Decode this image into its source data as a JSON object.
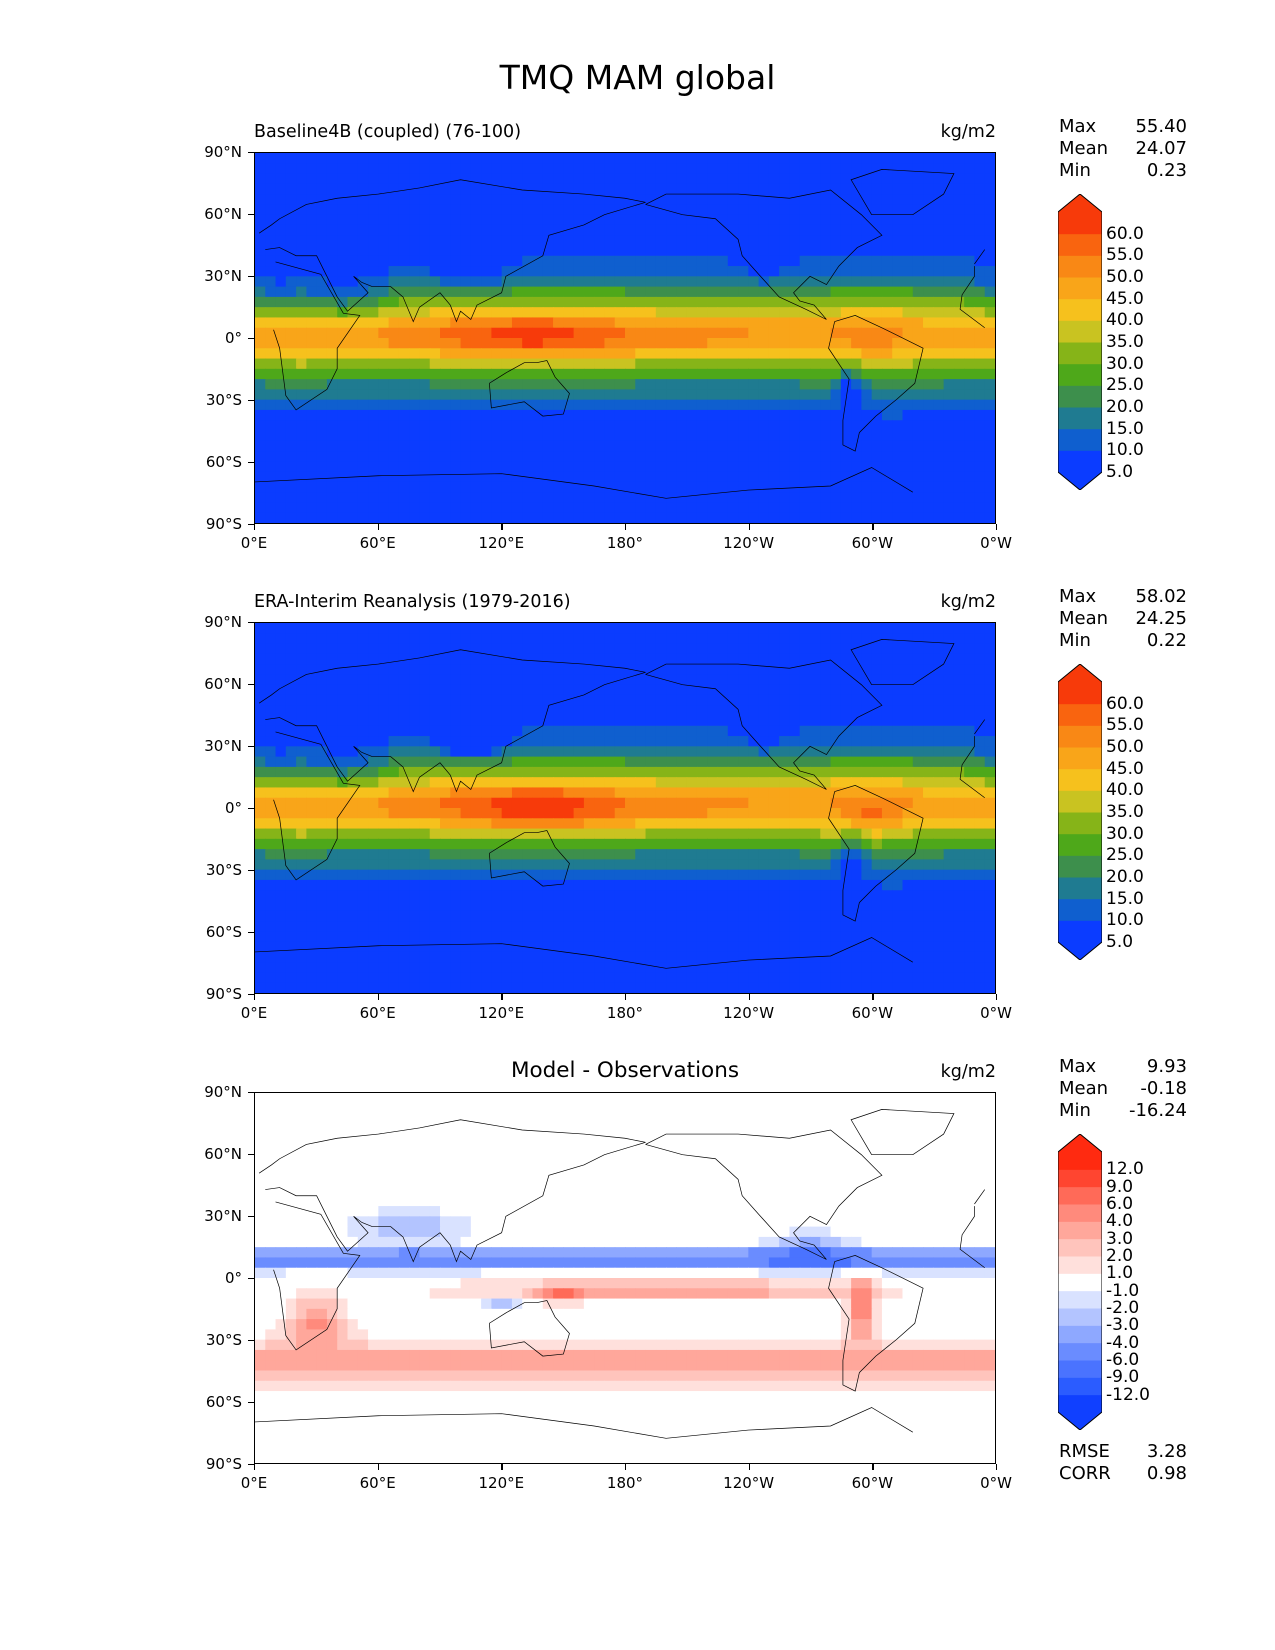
{
  "figure": {
    "title": "TMQ MAM global"
  },
  "axes": {
    "lat_labels": [
      "90°N",
      "60°N",
      "30°N",
      "0°",
      "30°S",
      "60°S",
      "90°S"
    ],
    "lon_labels": [
      "0°E",
      "60°E",
      "120°E",
      "180°",
      "120°W",
      "60°W",
      "0°W"
    ]
  },
  "colors": {
    "field_levels": [
      "#0b3cff",
      "#0f5fcf",
      "#1f7b91",
      "#3d8f4c",
      "#4ea81a",
      "#86b418",
      "#c9c321",
      "#f6c11d",
      "#f9a519",
      "#f98815",
      "#f9640f",
      "#f73a0a"
    ],
    "diff_levels": [
      "#1040ff",
      "#2b5cff",
      "#4a73ff",
      "#6a8cff",
      "#8ea8ff",
      "#b3c4ff",
      "#d9e2ff",
      "#ffffff",
      "#ffe0dc",
      "#ffc4bc",
      "#ffa79b",
      "#ff8a7c",
      "#ff6a58",
      "#ff4530",
      "#ff2a10"
    ],
    "coast": "#000000"
  },
  "panels": [
    {
      "id": "test",
      "title": "Baseline4B (coupled) (76-100)",
      "units": "kg/m2",
      "stats": {
        "max_label": "Max",
        "max": "55.40",
        "mean_label": "Mean",
        "mean": "24.07",
        "min_label": "Min",
        "min": "0.23"
      },
      "colorbar_labels": [
        "60.0",
        "55.0",
        "50.0",
        "45.0",
        "40.0",
        "35.0",
        "30.0",
        "25.0",
        "20.0",
        "15.0",
        "10.0",
        "5.0"
      ]
    },
    {
      "id": "ref",
      "title": "ERA-Interim Reanalysis (1979-2016)",
      "units": "kg/m2",
      "stats": {
        "max_label": "Max",
        "max": "58.02",
        "mean_label": "Mean",
        "mean": "24.25",
        "min_label": "Min",
        "min": "0.22"
      },
      "colorbar_labels": [
        "60.0",
        "55.0",
        "50.0",
        "45.0",
        "40.0",
        "35.0",
        "30.0",
        "25.0",
        "20.0",
        "15.0",
        "10.0",
        "5.0"
      ]
    },
    {
      "id": "diff",
      "title": "Model - Observations",
      "units": "kg/m2",
      "stats": {
        "max_label": "Max",
        "max": "9.93",
        "mean_label": "Mean",
        "mean": "-0.18",
        "min_label": "Min",
        "min": "-16.24"
      },
      "colorbar_labels": [
        "12.0",
        "9.0",
        "6.0",
        "4.0",
        "3.0",
        "2.0",
        "1.0",
        "-1.0",
        "-2.0",
        "-3.0",
        "-4.0",
        "-6.0",
        "-9.0",
        "-12.0"
      ],
      "extra": {
        "rmse_label": "RMSE",
        "rmse": "3.28",
        "corr_label": "CORR",
        "corr": "0.98"
      }
    }
  ]
}
